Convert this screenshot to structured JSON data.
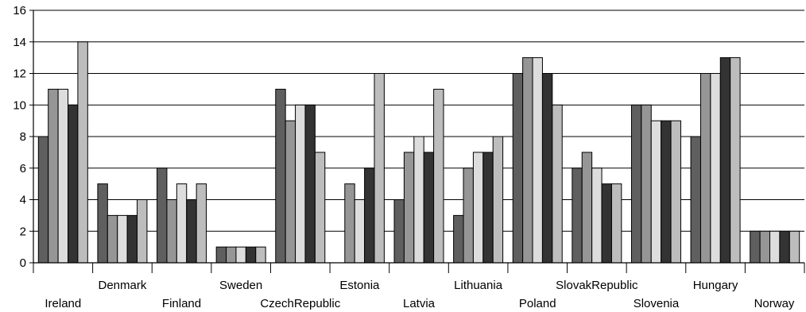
{
  "chart_data": {
    "type": "bar",
    "categories": [
      "Ireland",
      "Denmark",
      "Finland",
      "Sweden",
      "CzechRepublic",
      "Estonia",
      "Latvia",
      "Lithuania",
      "Poland",
      "SlovakRepublic",
      "Slovenia",
      "Hungary",
      "Norway"
    ],
    "series": [
      {
        "color": "#5f5f5f",
        "values": [
          8,
          5,
          6,
          1,
          11,
          0,
          4,
          3,
          12,
          6,
          10,
          8,
          2
        ]
      },
      {
        "color": "#969696",
        "values": [
          11,
          3,
          4,
          1,
          9,
          5,
          7,
          6,
          13,
          7,
          10,
          12,
          2
        ]
      },
      {
        "color": "#dddddd",
        "values": [
          11,
          3,
          5,
          1,
          10,
          4,
          8,
          7,
          13,
          6,
          9,
          12,
          2
        ]
      },
      {
        "color": "#333333",
        "values": [
          10,
          3,
          4,
          1,
          10,
          6,
          7,
          7,
          12,
          5,
          9,
          13,
          2
        ]
      },
      {
        "color": "#bdbdbd",
        "values": [
          14,
          4,
          5,
          1,
          7,
          12,
          11,
          8,
          10,
          5,
          9,
          13,
          2
        ]
      }
    ],
    "ylim": [
      0,
      16
    ],
    "yticks": [
      0,
      2,
      4,
      6,
      8,
      10,
      12,
      14,
      16
    ],
    "grid": true,
    "legend": "none"
  }
}
